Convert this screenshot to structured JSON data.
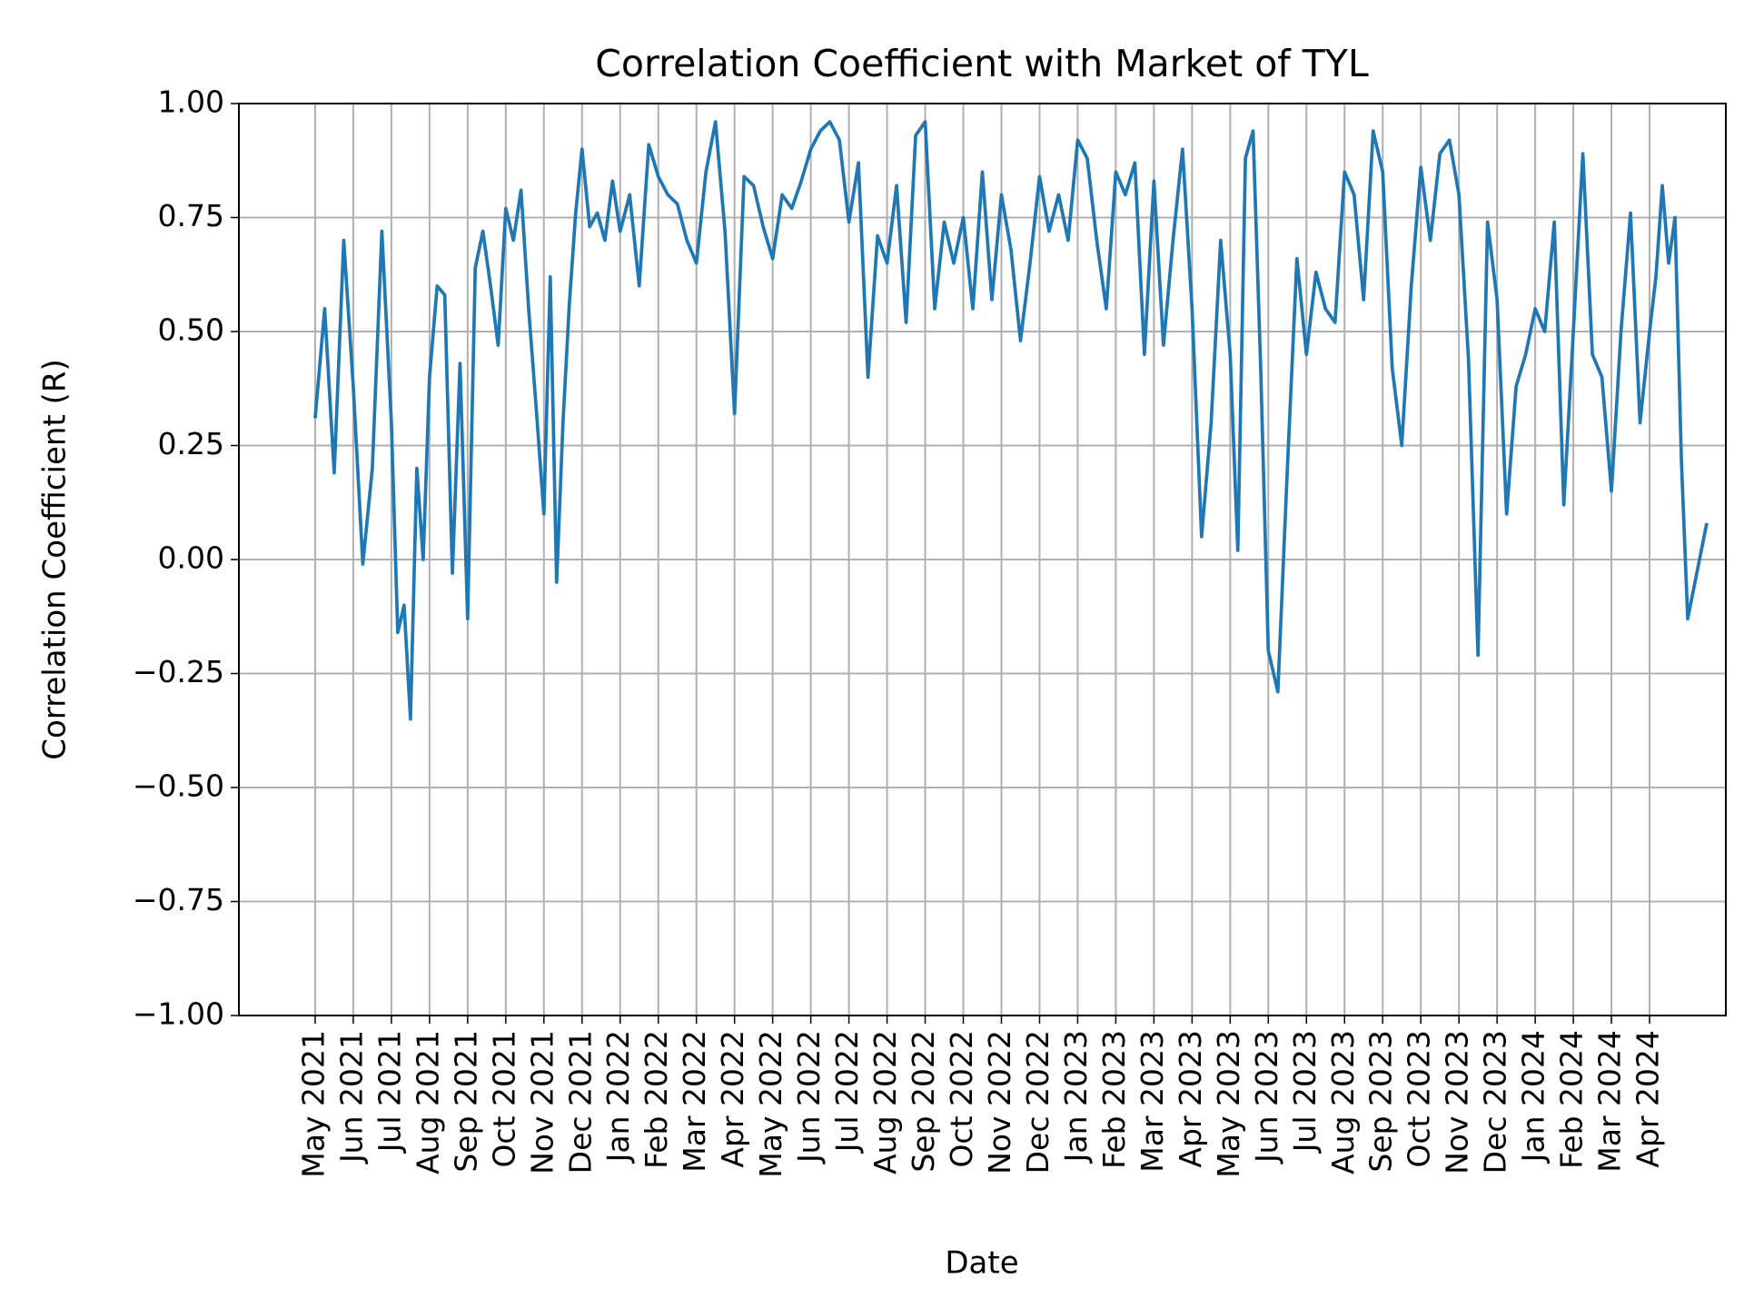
{
  "chart_data": {
    "type": "line",
    "title": "Correlation Coefficient with Market of TYL",
    "xlabel": "Date",
    "ylabel": "Correlation Coefficient (R)",
    "color": "#1f77b4",
    "grid": true,
    "ylim": [
      -1,
      1
    ],
    "yticks": [
      {
        "value": -1,
        "label": "−1.00"
      },
      {
        "value": -0.75,
        "label": "−0.75"
      },
      {
        "value": -0.5,
        "label": "−0.50"
      },
      {
        "value": -0.25,
        "label": "−0.25"
      },
      {
        "value": 0,
        "label": "0.00"
      },
      {
        "value": 0.25,
        "label": "0.25"
      },
      {
        "value": 0.5,
        "label": "0.50"
      },
      {
        "value": 0.75,
        "label": "0.75"
      },
      {
        "value": 1,
        "label": "1.00"
      }
    ],
    "xlim": [
      "2021-03",
      "2024-06"
    ],
    "xticks": [
      {
        "value": "2021-05",
        "label": "May 2021"
      },
      {
        "value": "2021-06",
        "label": "Jun 2021"
      },
      {
        "value": "2021-07",
        "label": "Jul 2021"
      },
      {
        "value": "2021-08",
        "label": "Aug 2021"
      },
      {
        "value": "2021-09",
        "label": "Sep 2021"
      },
      {
        "value": "2021-10",
        "label": "Oct 2021"
      },
      {
        "value": "2021-11",
        "label": "Nov 2021"
      },
      {
        "value": "2021-12",
        "label": "Dec 2021"
      },
      {
        "value": "2022-01",
        "label": "Jan 2022"
      },
      {
        "value": "2022-02",
        "label": "Feb 2022"
      },
      {
        "value": "2022-03",
        "label": "Mar 2022"
      },
      {
        "value": "2022-04",
        "label": "Apr 2022"
      },
      {
        "value": "2022-05",
        "label": "May 2022"
      },
      {
        "value": "2022-06",
        "label": "Jun 2022"
      },
      {
        "value": "2022-07",
        "label": "Jul 2022"
      },
      {
        "value": "2022-08",
        "label": "Aug 2022"
      },
      {
        "value": "2022-09",
        "label": "Sep 2022"
      },
      {
        "value": "2022-10",
        "label": "Oct 2022"
      },
      {
        "value": "2022-11",
        "label": "Nov 2022"
      },
      {
        "value": "2022-12",
        "label": "Dec 2022"
      },
      {
        "value": "2023-01",
        "label": "Jan 2023"
      },
      {
        "value": "2023-02",
        "label": "Feb 2023"
      },
      {
        "value": "2023-03",
        "label": "Mar 2023"
      },
      {
        "value": "2023-04",
        "label": "Apr 2023"
      },
      {
        "value": "2023-05",
        "label": "May 2023"
      },
      {
        "value": "2023-06",
        "label": "Jun 2023"
      },
      {
        "value": "2023-07",
        "label": "Jul 2023"
      },
      {
        "value": "2023-08",
        "label": "Aug 2023"
      },
      {
        "value": "2023-09",
        "label": "Sep 2023"
      },
      {
        "value": "2023-10",
        "label": "Oct 2023"
      },
      {
        "value": "2023-11",
        "label": "Nov 2023"
      },
      {
        "value": "2023-12",
        "label": "Dec 2023"
      },
      {
        "value": "2024-01",
        "label": "Jan 2024"
      },
      {
        "value": "2024-02",
        "label": "Feb 2024"
      },
      {
        "value": "2024-03",
        "label": "Mar 2024"
      },
      {
        "value": "2024-04",
        "label": "Apr 2024"
      }
    ],
    "x": [
      "2021-05",
      "2021-05",
      "2021-05",
      "2021-05",
      "2021-06",
      "2021-06",
      "2021-06",
      "2021-06",
      "2021-07",
      "2021-07",
      "2021-07",
      "2021-07",
      "2021-07",
      "2021-07",
      "2021-08",
      "2021-08",
      "2021-08",
      "2021-08",
      "2021-08",
      "2021-09",
      "2021-09",
      "2021-09",
      "2021-09",
      "2021-09",
      "2021-10",
      "2021-10",
      "2021-10",
      "2021-10",
      "2021-10",
      "2021-11",
      "2021-11",
      "2021-11",
      "2021-11",
      "2021-11",
      "2021-11",
      "2021-12",
      "2021-12",
      "2021-12",
      "2021-12",
      "2021-12",
      "2022-01",
      "2022-01",
      "2022-01",
      "2022-01",
      "2022-02",
      "2022-02",
      "2022-02",
      "2022-02",
      "2022-03",
      "2022-03",
      "2022-03",
      "2022-03",
      "2022-04",
      "2022-04",
      "2022-04",
      "2022-04",
      "2022-05",
      "2022-05",
      "2022-05",
      "2022-05",
      "2022-06",
      "2022-06",
      "2022-06",
      "2022-06",
      "2022-07",
      "2022-07",
      "2022-07",
      "2022-07",
      "2022-08",
      "2022-08",
      "2022-08",
      "2022-08",
      "2022-09",
      "2022-09",
      "2022-09",
      "2022-09",
      "2022-10",
      "2022-10",
      "2022-10",
      "2022-10",
      "2022-11",
      "2022-11",
      "2022-11",
      "2022-11",
      "2022-12",
      "2022-12",
      "2022-12",
      "2022-12",
      "2023-01",
      "2023-01",
      "2023-01",
      "2023-01",
      "2023-02",
      "2023-02",
      "2023-02",
      "2023-02",
      "2023-03",
      "2023-03",
      "2023-03",
      "2023-03",
      "2023-04",
      "2023-04",
      "2023-04",
      "2023-04",
      "2023-05",
      "2023-05",
      "2023-05",
      "2023-05",
      "2023-05",
      "2023-06",
      "2023-06",
      "2023-06",
      "2023-06",
      "2023-07",
      "2023-07",
      "2023-07",
      "2023-07",
      "2023-08",
      "2023-08",
      "2023-08",
      "2023-08",
      "2023-09",
      "2023-09",
      "2023-09",
      "2023-09",
      "2023-10",
      "2023-10",
      "2023-10",
      "2023-10",
      "2023-11",
      "2023-11",
      "2023-11",
      "2023-11",
      "2023-12",
      "2023-12",
      "2023-12",
      "2023-12",
      "2024-01",
      "2024-01",
      "2024-01",
      "2024-01",
      "2024-02",
      "2024-02",
      "2024-02",
      "2024-02",
      "2024-03",
      "2024-03",
      "2024-03",
      "2024-03",
      "2024-04",
      "2024-04",
      "2024-04",
      "2024-04",
      "2024-04",
      "2024-04",
      "2024-05",
      "2024-05"
    ],
    "values": [
      0.31,
      0.55,
      0.19,
      0.7,
      0.38,
      -0.01,
      0.2,
      0.72,
      0.3,
      -0.16,
      -0.1,
      -0.35,
      0.2,
      0.0,
      0.4,
      0.6,
      0.58,
      -0.03,
      0.43,
      -0.13,
      0.64,
      0.72,
      0.6,
      0.47,
      0.77,
      0.7,
      0.81,
      0.55,
      0.33,
      0.1,
      0.62,
      -0.05,
      0.3,
      0.56,
      0.76,
      0.9,
      0.73,
      0.76,
      0.7,
      0.83,
      0.72,
      0.8,
      0.6,
      0.91,
      0.84,
      0.8,
      0.78,
      0.7,
      0.65,
      0.85,
      0.96,
      0.72,
      0.32,
      0.84,
      0.82,
      0.73,
      0.66,
      0.8,
      0.77,
      0.83,
      0.9,
      0.94,
      0.96,
      0.92,
      0.74,
      0.87,
      0.4,
      0.71,
      0.65,
      0.82,
      0.52,
      0.93,
      0.96,
      0.55,
      0.74,
      0.65,
      0.75,
      0.55,
      0.85,
      0.57,
      0.8,
      0.68,
      0.48,
      0.65,
      0.84,
      0.72,
      0.8,
      0.7,
      0.92,
      0.88,
      0.7,
      0.55,
      0.85,
      0.8,
      0.87,
      0.45,
      0.83,
      0.47,
      0.7,
      0.9,
      0.55,
      0.05,
      0.3,
      0.7,
      0.45,
      0.02,
      0.88,
      0.94,
      0.42,
      -0.2,
      -0.29,
      0.2,
      0.66,
      0.45,
      0.63,
      0.55,
      0.52,
      0.85,
      0.8,
      0.57,
      0.94,
      0.85,
      0.42,
      0.25,
      0.6,
      0.86,
      0.7,
      0.89,
      0.92,
      0.8,
      0.44,
      -0.21,
      0.74,
      0.57,
      0.1,
      0.38,
      0.45,
      0.55,
      0.5,
      0.74,
      0.12,
      0.5,
      0.89,
      0.45,
      0.4,
      0.15,
      0.5,
      0.76,
      0.3,
      0.5,
      0.62,
      0.82,
      0.65,
      0.75,
      0.22,
      -0.13,
      0.08
    ]
  }
}
